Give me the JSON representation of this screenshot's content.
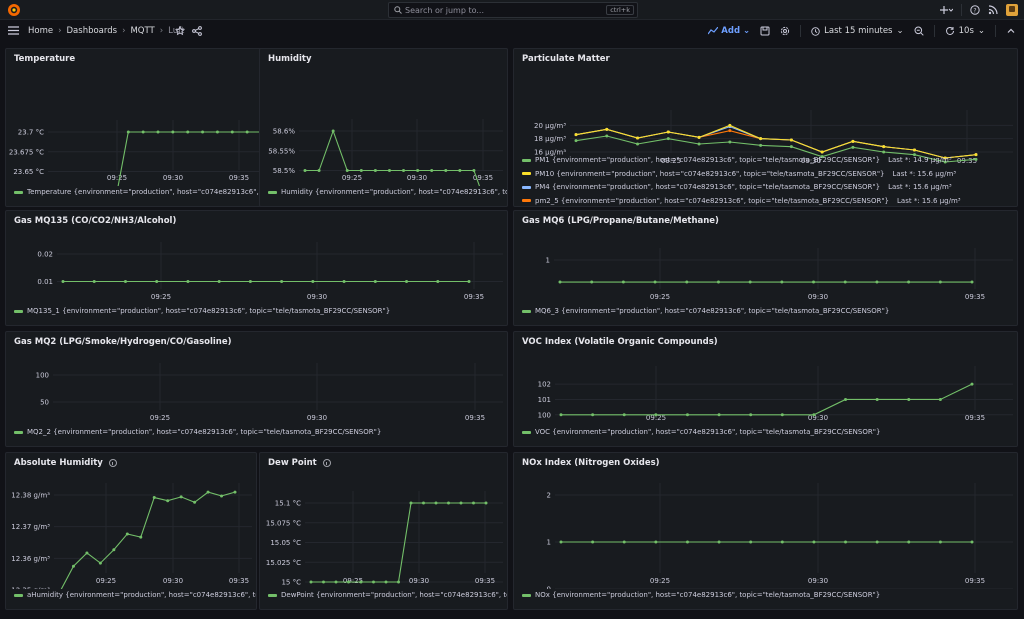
{
  "topbar": {
    "search_placeholder": "Search or jump to...",
    "search_shortcut": "ctrl+k"
  },
  "breadcrumb": {
    "home": "Home",
    "dashboards": "Dashboards",
    "folder": "MQTT",
    "current": "Luft"
  },
  "toolbar": {
    "add_label": "Add",
    "time_range": "Last 15 minutes",
    "refresh_interval": "10s"
  },
  "colors": {
    "green": "#73bf69",
    "yellow": "#fade2a",
    "blue": "#8ab8ff",
    "orange": "#ff780a",
    "accent": "#6e9fff"
  },
  "panels": [
    {
      "title": "Temperature",
      "legend": "Temperature {environment=\"production\", host=\"c074e82913c6\", topic=\"te",
      "chart_data": {
        "type": "line",
        "x": [
          "09:21",
          "09:22",
          "09:23",
          "09:24",
          "09:25",
          "09:26",
          "09:27",
          "09:28",
          "09:29",
          "09:30",
          "09:31",
          "09:32",
          "09:33",
          "09:34",
          "09:35"
        ],
        "xticks": [
          "09:25",
          "09:30",
          "09:35"
        ],
        "yticks": [
          "23.6 °C",
          "23.625 °C",
          "23.65 °C",
          "23.675 °C",
          "23.7 °C"
        ],
        "ylim": [
          23.6,
          23.7
        ],
        "series": [
          {
            "values": [
              23.6,
              23.6,
              23.6,
              23.6,
              23.6,
              23.7,
              23.7,
              23.7,
              23.7,
              23.7,
              23.7,
              23.7,
              23.7,
              23.7,
              23.7
            ]
          }
        ]
      }
    },
    {
      "title": "Humidity",
      "legend": "Humidity {environment=\"production\", host=\"c074e82913c6\", topic=\"tele/",
      "chart_data": {
        "type": "line",
        "x": [
          "09:23",
          "09:24",
          "09:25",
          "09:26",
          "09:27",
          "09:28",
          "09:29",
          "09:30",
          "09:31",
          "09:32",
          "09:33",
          "09:34",
          "09:35",
          "09:36"
        ],
        "xticks": [
          "09:25",
          "09:30",
          "09:35"
        ],
        "yticks": [
          "58.4%",
          "58.45%",
          "58.5%",
          "58.55%",
          "58.6%"
        ],
        "ylim": [
          58.4,
          58.6
        ],
        "series": [
          {
            "values": [
              58.5,
              58.5,
              58.6,
              58.5,
              58.5,
              58.5,
              58.5,
              58.5,
              58.5,
              58.5,
              58.5,
              58.5,
              58.5,
              58.4
            ]
          }
        ]
      }
    },
    {
      "title": "Particulate Matter",
      "legend_items": [
        {
          "label": "PM1 {environment=\"production\", host=\"c074e82913c6\", topic=\"tele/tasmota_BF29CC/SENSOR\"}",
          "last": "Last *: 14.9 µg/m³"
        },
        {
          "label": "PM10 {environment=\"production\", host=\"c074e82913c6\", topic=\"tele/tasmota_BF29CC/SENSOR\"}",
          "last": "Last *: 15.6 µg/m³"
        },
        {
          "label": "PM4 {environment=\"production\", host=\"c074e82913c6\", topic=\"tele/tasmota_BF29CC/SENSOR\"}",
          "last": "Last *: 15.6 µg/m³"
        },
        {
          "label": "pm2_5 {environment=\"production\", host=\"c074e82913c6\", topic=\"tele/tasmota_BF29CC/SENSOR\"}",
          "last": "Last *: 15.6 µg/m³"
        }
      ],
      "chart_data": {
        "type": "line",
        "x": [
          "09:22",
          "09:23",
          "09:24",
          "09:25",
          "09:26",
          "09:27",
          "09:28",
          "09:29",
          "09:30",
          "09:31",
          "09:32",
          "09:33",
          "09:34",
          "09:35"
        ],
        "xticks": [
          "09:25",
          "09:30",
          "09:35"
        ],
        "yticks": [
          "16 µg/m³",
          "18 µg/m³",
          "20 µg/m³"
        ],
        "ylim": [
          14.5,
          20.5
        ],
        "series": [
          {
            "name": "PM1",
            "color": "green",
            "values": [
              17.7,
              18.4,
              17.2,
              18.0,
              17.2,
              17.5,
              17.0,
              16.8,
              15.3,
              16.7,
              16.0,
              15.6,
              14.5,
              14.9
            ]
          },
          {
            "name": "PM10",
            "color": "yellow",
            "values": [
              18.6,
              19.4,
              18.1,
              19.0,
              18.2,
              20.0,
              18.0,
              17.8,
              16.0,
              17.6,
              16.8,
              16.3,
              15.1,
              15.6
            ]
          },
          {
            "name": "PM4",
            "color": "blue",
            "values": [
              18.6,
              19.4,
              18.1,
              19.0,
              18.2,
              19.8,
              18.0,
              17.8,
              16.0,
              17.6,
              16.8,
              16.3,
              15.1,
              15.6
            ]
          },
          {
            "name": "pm2_5",
            "color": "orange",
            "values": [
              18.6,
              19.4,
              18.1,
              19.0,
              18.2,
              19.2,
              18.0,
              17.8,
              16.0,
              17.6,
              16.8,
              16.3,
              15.1,
              15.6
            ]
          }
        ]
      }
    },
    {
      "title": "Gas MQ135 (CO/CO2/NH3/Alcohol)",
      "legend": "MQ135_1 {environment=\"production\", host=\"c074e82913c6\", topic=\"tele/tasmota_BF29CC/SENSOR\"}",
      "chart_data": {
        "type": "line",
        "x": [
          "09:22",
          "09:23",
          "09:24",
          "09:25",
          "09:26",
          "09:27",
          "09:28",
          "09:29",
          "09:30",
          "09:31",
          "09:32",
          "09:33",
          "09:34",
          "09:35"
        ],
        "xticks": [
          "09:25",
          "09:30",
          "09:35"
        ],
        "yticks": [
          "0",
          "0.01",
          "0.02"
        ],
        "ylim": [
          0,
          0.02
        ],
        "series": [
          {
            "values": [
              0.01,
              0.01,
              0.01,
              0.01,
              0.01,
              0.01,
              0.01,
              0.01,
              0.01,
              0.01,
              0.01,
              0.01,
              0.01,
              0.01
            ]
          }
        ]
      }
    },
    {
      "title": "Gas MQ6 (LPG/Propane/Butane/Methane)",
      "legend": "MQ6_3 {environment=\"production\", host=\"c074e82913c6\", topic=\"tele/tasmota_BF29CC/SENSOR\"}",
      "chart_data": {
        "type": "line",
        "x": [
          "09:22",
          "09:23",
          "09:24",
          "09:25",
          "09:26",
          "09:27",
          "09:28",
          "09:29",
          "09:30",
          "09:31",
          "09:32",
          "09:33",
          "09:34",
          "09:35"
        ],
        "xticks": [
          "09:25",
          "09:30",
          "09:35"
        ],
        "yticks": [
          "0",
          "1"
        ],
        "ylim": [
          0,
          1
        ],
        "series": [
          {
            "values": [
              0.55,
              0.55,
              0.55,
              0.55,
              0.55,
              0.55,
              0.55,
              0.55,
              0.55,
              0.55,
              0.55,
              0.55,
              0.55,
              0.55
            ]
          }
        ]
      }
    },
    {
      "title": "Gas MQ2 (LPG/Smoke/Hydrogen/CO/Gasoline)",
      "legend": "MQ2_2 {environment=\"production\", host=\"c074e82913c6\", topic=\"tele/tasmota_BF29CC/SENSOR\"}",
      "chart_data": {
        "type": "line",
        "x": [
          "09:22",
          "09:23",
          "09:24",
          "09:25",
          "09:26",
          "09:27",
          "09:28",
          "09:29",
          "09:30",
          "09:31",
          "09:32",
          "09:33",
          "09:34",
          "09:35"
        ],
        "xticks": [
          "09:25",
          "09:30",
          "09:35"
        ],
        "yticks": [
          "0",
          "50",
          "100"
        ],
        "ylim": [
          0,
          100
        ],
        "series": [
          {
            "values": [
              0,
              0,
              0,
              0,
              0,
              0,
              0,
              0,
              0,
              0,
              0,
              0,
              0,
              0
            ]
          }
        ]
      }
    },
    {
      "title": "VOC Index (Volatile Organic Compounds)",
      "legend": "VOC {environment=\"production\", host=\"c074e82913c6\", topic=\"tele/tasmota_BF29CC/SENSOR\"}",
      "chart_data": {
        "type": "line",
        "x": [
          "09:22",
          "09:23",
          "09:24",
          "09:25",
          "09:26",
          "09:27",
          "09:28",
          "09:29",
          "09:30",
          "09:31",
          "09:32",
          "09:33",
          "09:34",
          "09:35"
        ],
        "xticks": [
          "09:25",
          "09:30",
          "09:35"
        ],
        "yticks": [
          "100",
          "101",
          "102"
        ],
        "ylim": [
          99.4,
          102.4
        ],
        "series": [
          {
            "values": [
              100,
              100,
              100,
              100,
              100,
              100,
              100,
              100,
              100,
              101,
              101,
              101,
              101,
              102
            ]
          }
        ]
      }
    },
    {
      "title": "Absolute Humidity",
      "legend": "aHumidity {environment=\"production\", host=\"c074e82913c6\", topic=\"tele/",
      "chart_data": {
        "type": "line",
        "x": [
          "09:22",
          "09:23",
          "09:24",
          "09:25",
          "09:26",
          "09:27",
          "09:28",
          "09:29",
          "09:30",
          "09:31",
          "09:32",
          "09:33",
          "09:34",
          "09:35"
        ],
        "xticks": [
          "09:25",
          "09:30",
          "09:35"
        ],
        "yticks": [
          "12.35 g/m³",
          "12.36 g/m³",
          "12.37 g/m³",
          "12.38 g/m³"
        ],
        "ylim": [
          12.35,
          12.38
        ],
        "series": [
          {
            "values": [
              12.3495,
              12.3575,
              12.3617,
              12.3585,
              12.3627,
              12.3677,
              12.3667,
              12.3792,
              12.3782,
              12.3794,
              12.3777,
              12.3809,
              12.3797,
              12.3809
            ]
          }
        ]
      }
    },
    {
      "title": "Dew Point",
      "legend": "DewPoint {environment=\"production\", host=\"c074e82913c6\", topic=\"tele/",
      "chart_data": {
        "type": "line",
        "x": [
          "09:21",
          "09:22",
          "09:23",
          "09:24",
          "09:25",
          "09:26",
          "09:27",
          "09:28",
          "09:29",
          "09:30",
          "09:31",
          "09:32",
          "09:33",
          "09:34",
          "09:35"
        ],
        "xticks": [
          "09:25",
          "09:30",
          "09:35"
        ],
        "yticks": [
          "15 °C",
          "15.025 °C",
          "15.05 °C",
          "15.075 °C",
          "15.1 °C"
        ],
        "ylim": [
          15.0,
          15.1
        ],
        "series": [
          {
            "values": [
              15.0,
              15.0,
              15.0,
              15.0,
              15.0,
              15.0,
              15.0,
              15.0,
              15.1,
              15.1,
              15.1,
              15.1,
              15.1,
              15.1,
              15.1
            ]
          }
        ]
      }
    },
    {
      "title": "NOx Index (Nitrogen Oxides)",
      "legend": "NOx {environment=\"production\", host=\"c074e82913c6\", topic=\"tele/tasmota_BF29CC/SENSOR\"}",
      "chart_data": {
        "type": "line",
        "x": [
          "09:22",
          "09:23",
          "09:24",
          "09:25",
          "09:26",
          "09:27",
          "09:28",
          "09:29",
          "09:30",
          "09:31",
          "09:32",
          "09:33",
          "09:34",
          "09:35"
        ],
        "xticks": [
          "09:25",
          "09:30",
          "09:35"
        ],
        "yticks": [
          "0",
          "1",
          "2"
        ],
        "ylim": [
          0,
          2
        ],
        "series": [
          {
            "values": [
              1,
              1,
              1,
              1,
              1,
              1,
              1,
              1,
              1,
              1,
              1,
              1,
              1,
              1
            ]
          }
        ]
      }
    }
  ]
}
